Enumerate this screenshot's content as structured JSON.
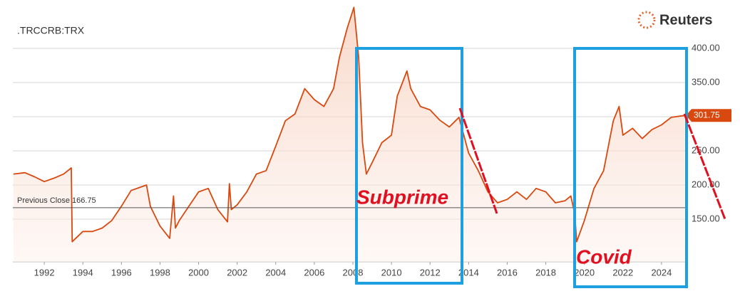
{
  "chart_data": {
    "type": "line",
    "title": ".TRCCRB:TRX",
    "brand": "Reuters",
    "x": [
      1990.4,
      1991,
      1991.5,
      1992,
      1992.5,
      1993,
      1993.4,
      1993.45,
      1994,
      1994.5,
      1995,
      1995.5,
      1996,
      1996.5,
      1997,
      1997.3,
      1997.5,
      1998,
      1998.5,
      1998.7,
      1998.8,
      1999,
      1999.5,
      2000,
      2000.5,
      2001,
      2001.5,
      2001.6,
      2001.7,
      2002,
      2002.5,
      2003,
      2003.5,
      2004,
      2004.5,
      2005,
      2005.5,
      2006,
      2006.5,
      2007,
      2007.3,
      2007.7,
      2008.05,
      2008.3,
      2008.5,
      2008.7,
      2009,
      2009.5,
      2010,
      2010.3,
      2010.8,
      2011,
      2011.5,
      2012,
      2012.5,
      2013,
      2013.5,
      2014,
      2014.5,
      2015,
      2015.5,
      2016,
      2016.5,
      2017,
      2017.5,
      2018,
      2018.5,
      2019,
      2019.3,
      2019.5,
      2019.6,
      2020,
      2020.5,
      2021,
      2021.5,
      2021.8,
      2022,
      2022.5,
      2023,
      2023.5,
      2024,
      2024.5,
      2025.2
    ],
    "values": [
      216,
      218,
      212,
      205,
      210,
      216,
      225,
      117,
      132,
      132,
      137,
      148,
      169,
      192,
      197,
      200,
      169,
      140,
      122,
      184,
      137,
      148,
      169,
      190,
      195,
      164,
      146,
      202,
      164,
      171,
      190,
      216,
      221,
      257,
      294,
      304,
      341,
      325,
      315,
      341,
      387,
      429,
      460,
      387,
      262,
      216,
      233,
      262,
      273,
      330,
      367,
      341,
      315,
      310,
      295,
      285,
      299,
      247,
      221,
      190,
      174,
      179,
      190,
      179,
      195,
      190,
      174,
      177,
      184,
      158,
      117,
      148,
      195,
      221,
      294,
      315,
      273,
      283,
      268,
      281,
      288,
      299,
      301.75
    ],
    "color": "#d9480f",
    "xlim": [
      1990.37,
      2025.26
    ],
    "xticks": [
      1992,
      1994,
      1996,
      1998,
      2000,
      2002,
      2004,
      2006,
      2008,
      2010,
      2012,
      2014,
      2016,
      2018,
      2020,
      2022,
      2024
    ],
    "ylim": [
      87.5,
      470.8
    ],
    "yticks": [
      {
        "value": 150,
        "label": "150.00"
      },
      {
        "value": 200,
        "label": "200.00"
      },
      {
        "value": 250,
        "label": "250.00"
      },
      {
        "value": 300,
        "label": "300.00"
      },
      {
        "value": 350,
        "label": "350.00"
      },
      {
        "value": 400,
        "label": "400.00"
      }
    ],
    "grid": true,
    "reference": {
      "value": 166.75,
      "label": "Previous Close 166.75"
    },
    "last_value": 301.75,
    "annotations": [
      "Subprime",
      "Covid"
    ]
  }
}
